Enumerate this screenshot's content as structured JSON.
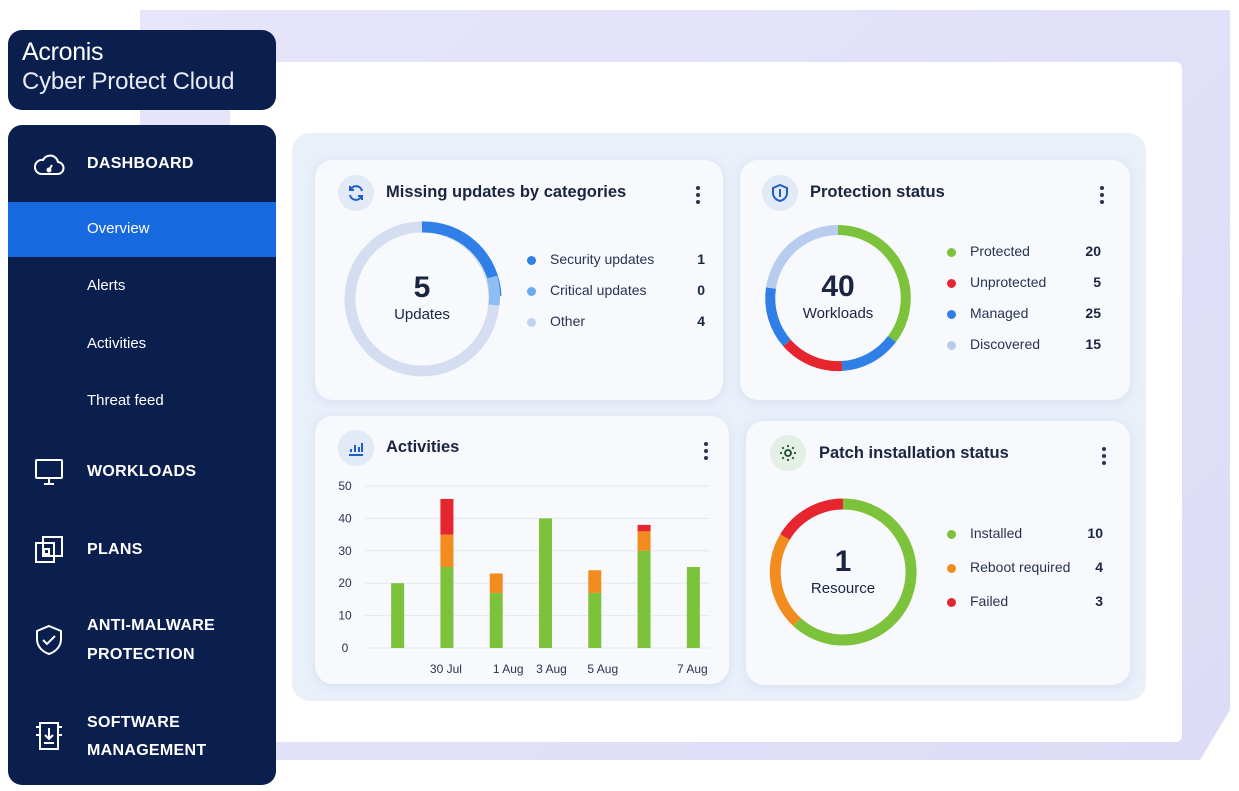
{
  "brand": {
    "line1": "Acronis",
    "line2": "Cyber Protect Cloud"
  },
  "sidebar": {
    "dashboard": "DASHBOARD",
    "sub_items": [
      "Overview",
      "Alerts",
      "Activities",
      "Threat feed"
    ],
    "active_sub": "Overview",
    "workloads": "WORKLOADS",
    "plans": "PLANS",
    "anti_malware_1": "ANTI-MALWARE",
    "anti_malware_2": "PROTECTION",
    "software_1": "SOFTWARE",
    "software_2": "MANAGEMENT"
  },
  "missing_updates": {
    "title": "Missing updates by categories",
    "total": "5",
    "total_label": "Updates",
    "legend": [
      {
        "label": "Security updates",
        "value": "1",
        "color": "#2f7fe6"
      },
      {
        "label": "Critical updates",
        "value": "0",
        "color": "#6aabf0"
      },
      {
        "label": "Other",
        "value": "4",
        "color": "#c2d3ee"
      }
    ]
  },
  "protection": {
    "title": "Protection status",
    "total": "40",
    "total_label": "Workloads",
    "legend": [
      {
        "label": "Protected",
        "value": "20",
        "color": "#7cc23a"
      },
      {
        "label": "Unprotected",
        "value": "5",
        "color": "#e5262e"
      },
      {
        "label": "Managed",
        "value": "25",
        "color": "#2f7fe6"
      },
      {
        "label": "Discovered",
        "value": "15",
        "color": "#b8cdee"
      }
    ]
  },
  "patch": {
    "title": "Patch installation status",
    "total": "1",
    "total_label": "Resource",
    "legend": [
      {
        "label": "Installed",
        "value": "10",
        "color": "#7cc23a"
      },
      {
        "label": "Reboot required",
        "value": "4",
        "color": "#f28c1e"
      },
      {
        "label": "Failed",
        "value": "3",
        "color": "#e5262e"
      }
    ]
  },
  "activities": {
    "title": "Activities"
  },
  "chart_data": {
    "type": "bar",
    "stacked": true,
    "title": "Activities",
    "ylim": [
      0,
      50
    ],
    "yticks": [
      0,
      10,
      20,
      30,
      40,
      50
    ],
    "x_tick_labels": [
      "30 Jul",
      "1 Aug",
      "3 Aug",
      "5 Aug",
      "7 Aug"
    ],
    "grid": true,
    "colors": [
      "#7cc23a",
      "#f28c1e",
      "#e5262e"
    ],
    "bars": [
      {
        "values": [
          20,
          0,
          0
        ]
      },
      {
        "values": [
          25,
          10,
          11
        ]
      },
      {
        "values": [
          17,
          6,
          0
        ]
      },
      {
        "values": [
          40,
          0,
          0
        ]
      },
      {
        "values": [
          17,
          7,
          0
        ]
      },
      {
        "values": [
          30,
          6,
          2
        ]
      },
      {
        "values": [
          25,
          0,
          0
        ]
      }
    ]
  }
}
